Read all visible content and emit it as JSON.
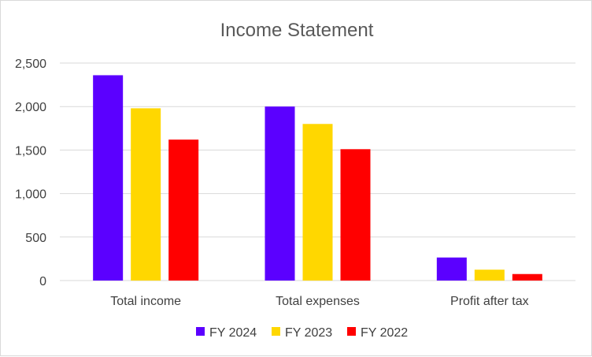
{
  "chart_data": {
    "type": "bar",
    "title": "Income Statement",
    "xlabel": "",
    "ylabel": "",
    "categories": [
      "Total income",
      "Total expenses",
      "Profit after tax"
    ],
    "series": [
      {
        "name": "FY 2024",
        "values": [
          2360,
          2000,
          265
        ],
        "color": "#5b00ff"
      },
      {
        "name": "FY 2023",
        "values": [
          1980,
          1800,
          125
        ],
        "color": "#ffd700"
      },
      {
        "name": "FY 2022",
        "values": [
          1620,
          1510,
          75
        ],
        "color": "#ff0000"
      }
    ],
    "ylim": [
      0,
      2500
    ],
    "yticks": [
      0,
      500,
      1000,
      1500,
      2000,
      2500
    ],
    "ytick_labels": [
      "0",
      "500",
      "1,000",
      "1,500",
      "2,000",
      "2,500"
    ],
    "grid": true,
    "legend_position": "bottom"
  }
}
